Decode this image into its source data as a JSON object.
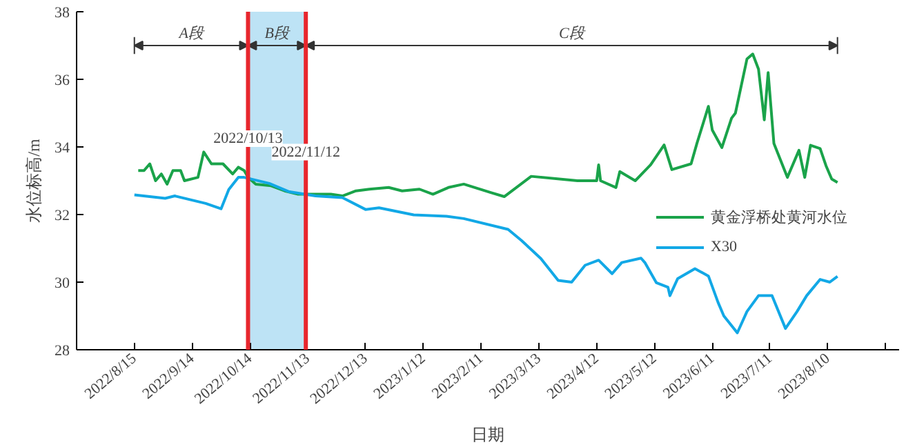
{
  "chart_data": {
    "type": "line",
    "xlabel": "日期",
    "ylabel": "水位标高/m",
    "xlim": [
      "2022-07-16",
      "2023-09-16"
    ],
    "ylim": [
      28,
      38
    ],
    "yticks": [
      28,
      30,
      32,
      34,
      36,
      38
    ],
    "xticks": [
      {
        "value": "2022-08-15",
        "label": "2022/8/15"
      },
      {
        "value": "2022-09-14",
        "label": "2022/9/14"
      },
      {
        "value": "2022-10-14",
        "label": "2022/10/14"
      },
      {
        "value": "2022-11-13",
        "label": "2022/11/13"
      },
      {
        "value": "2022-12-13",
        "label": "2022/12/13"
      },
      {
        "value": "2023-01-12",
        "label": "2023/1/12"
      },
      {
        "value": "2023-02-11",
        "label": "2023/2/11"
      },
      {
        "value": "2023-03-13",
        "label": "2023/3/13"
      },
      {
        "value": "2023-04-12",
        "label": "2023/4/12"
      },
      {
        "value": "2023-05-12",
        "label": "2023/5/12"
      },
      {
        "value": "2023-06-11",
        "label": "2023/6/11"
      },
      {
        "value": "2023-07-11",
        "label": "2023/7/11"
      },
      {
        "value": "2023-08-10",
        "label": "2023/8/10"
      },
      {
        "value": "2023-09-09",
        "label": null
      }
    ],
    "grid": false,
    "legend": "right",
    "line_style": "solid",
    "series": [
      {
        "name": "黄金浮桥处黄河水位",
        "color": "#1aa34a",
        "x": [
          "2022-08-17",
          "2022-08-20",
          "2022-08-23",
          "2022-08-26",
          "2022-08-29",
          "2022-09-01",
          "2022-09-04",
          "2022-09-08",
          "2022-09-10",
          "2022-09-17",
          "2022-09-20",
          "2022-09-24",
          "2022-09-30",
          "2022-10-05",
          "2022-10-08",
          "2022-10-11",
          "2022-10-13",
          "2022-10-17",
          "2022-10-25",
          "2022-11-01",
          "2022-11-08",
          "2022-11-15",
          "2022-11-25",
          "2022-12-01",
          "2022-12-08",
          "2022-12-15",
          "2022-12-25",
          "2023-01-01",
          "2023-01-10",
          "2023-01-17",
          "2023-01-25",
          "2023-02-02",
          "2023-02-16",
          "2023-02-23",
          "2023-03-09",
          "2023-04-02",
          "2023-04-12",
          "2023-04-13",
          "2023-04-14",
          "2023-04-22",
          "2023-04-24",
          "2023-05-02",
          "2023-05-10",
          "2023-05-17",
          "2023-05-21",
          "2023-05-31",
          "2023-06-03",
          "2023-06-09",
          "2023-06-11",
          "2023-06-16",
          "2023-06-21",
          "2023-06-23",
          "2023-06-29",
          "2023-07-02",
          "2023-07-05",
          "2023-07-08",
          "2023-07-10",
          "2023-07-13",
          "2023-07-20",
          "2023-07-26",
          "2023-07-29",
          "2023-08-01",
          "2023-08-06",
          "2023-08-09",
          "2023-08-12",
          "2023-08-15"
        ],
        "values": [
          33.3,
          33.3,
          33.5,
          33.0,
          33.2,
          32.9,
          33.3,
          33.3,
          33.0,
          33.1,
          33.85,
          33.5,
          33.5,
          33.2,
          33.4,
          33.3,
          33.1,
          32.9,
          32.85,
          32.7,
          32.6,
          32.6,
          32.6,
          32.55,
          32.7,
          32.75,
          32.8,
          32.7,
          32.75,
          32.6,
          32.8,
          32.9,
          32.65,
          32.53,
          33.13,
          33.0,
          33.0,
          33.47,
          33.0,
          32.8,
          33.27,
          33.0,
          33.47,
          34.06,
          33.33,
          33.5,
          34.1,
          35.2,
          34.5,
          33.98,
          34.85,
          35.0,
          36.6,
          36.75,
          36.3,
          34.8,
          36.2,
          34.1,
          33.1,
          33.9,
          33.1,
          34.05,
          33.95,
          33.45,
          33.05,
          32.95
        ]
      },
      {
        "name": "X30",
        "color": "#12a8e6",
        "x": [
          "2022-08-15",
          "2022-08-31",
          "2022-09-05",
          "2022-09-21",
          "2022-09-29",
          "2022-10-03",
          "2022-10-08",
          "2022-10-11",
          "2022-10-24",
          "2022-11-03",
          "2022-11-17",
          "2022-12-01",
          "2022-12-13",
          "2022-12-20",
          "2023-01-07",
          "2023-01-24",
          "2023-02-02",
          "2023-02-25",
          "2023-03-04",
          "2023-03-14",
          "2023-03-23",
          "2023-03-30",
          "2023-04-06",
          "2023-04-13",
          "2023-04-20",
          "2023-04-25",
          "2023-05-05",
          "2023-05-07",
          "2023-05-13",
          "2023-05-19",
          "2023-05-20",
          "2023-05-24",
          "2023-06-02",
          "2023-06-09",
          "2023-06-14",
          "2023-06-17",
          "2023-06-24",
          "2023-06-29",
          "2023-07-05",
          "2023-07-12",
          "2023-07-19",
          "2023-07-25",
          "2023-07-30",
          "2023-08-06",
          "2023-08-11",
          "2023-08-15"
        ],
        "values": [
          32.58,
          32.48,
          32.55,
          32.33,
          32.17,
          32.74,
          33.1,
          33.1,
          32.92,
          32.68,
          32.55,
          32.5,
          32.15,
          32.2,
          31.99,
          31.95,
          31.88,
          31.56,
          31.23,
          30.7,
          30.05,
          30.0,
          30.5,
          30.65,
          30.25,
          30.58,
          30.71,
          30.58,
          29.98,
          29.85,
          29.6,
          30.1,
          30.4,
          30.18,
          29.4,
          29.0,
          28.5,
          29.13,
          29.6,
          29.6,
          28.63,
          29.13,
          29.6,
          30.08,
          30.0,
          30.17
        ]
      }
    ],
    "ref_lines": [
      {
        "axis": "x",
        "value": "2022-10-13",
        "label": "2022/10/13",
        "color": "#e8262d"
      },
      {
        "axis": "x",
        "value": "2022-11-12",
        "label": "2022/11/12",
        "color": "#e8262d"
      }
    ],
    "bands": [
      {
        "axis": "x",
        "from": "2022-10-13",
        "to": "2022-11-12",
        "color": "#bde3f5"
      }
    ],
    "annotations": [
      "A段",
      "B段",
      "C段"
    ]
  }
}
